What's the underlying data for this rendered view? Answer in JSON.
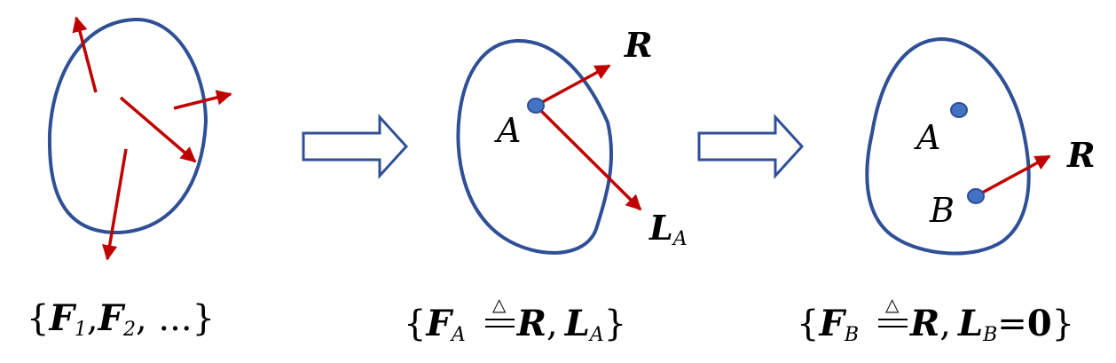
{
  "colors": {
    "outline": "#2f4f96",
    "force": "#c00000",
    "point_fill": "#4472c4",
    "text": "#000000"
  },
  "panel2": {
    "point_a": "A",
    "resultant": "R",
    "moment_letter": "L",
    "moment_sub": "A"
  },
  "panel3": {
    "point_a": "A",
    "point_b": "B",
    "resultant": "R"
  },
  "captions": {
    "c1": {
      "open": "{",
      "f": "F",
      "s1": "1",
      "comma1": ",",
      "f2": "F",
      "s2": "2",
      "rest": ", ...",
      "close": "}"
    },
    "c2": {
      "open": "{",
      "f": "F",
      "fsub": "A",
      "delta": "△",
      "r": "R",
      "comma": ",",
      "l": "L",
      "lsub": "A",
      "close": "}"
    },
    "c3": {
      "open": "{",
      "f": "F",
      "fsub": "B",
      "delta": "△",
      "r": "R",
      "comma": ",",
      "l": "L",
      "lsub": "B",
      "eq": "=",
      "zero": "0",
      "close": "}"
    }
  }
}
